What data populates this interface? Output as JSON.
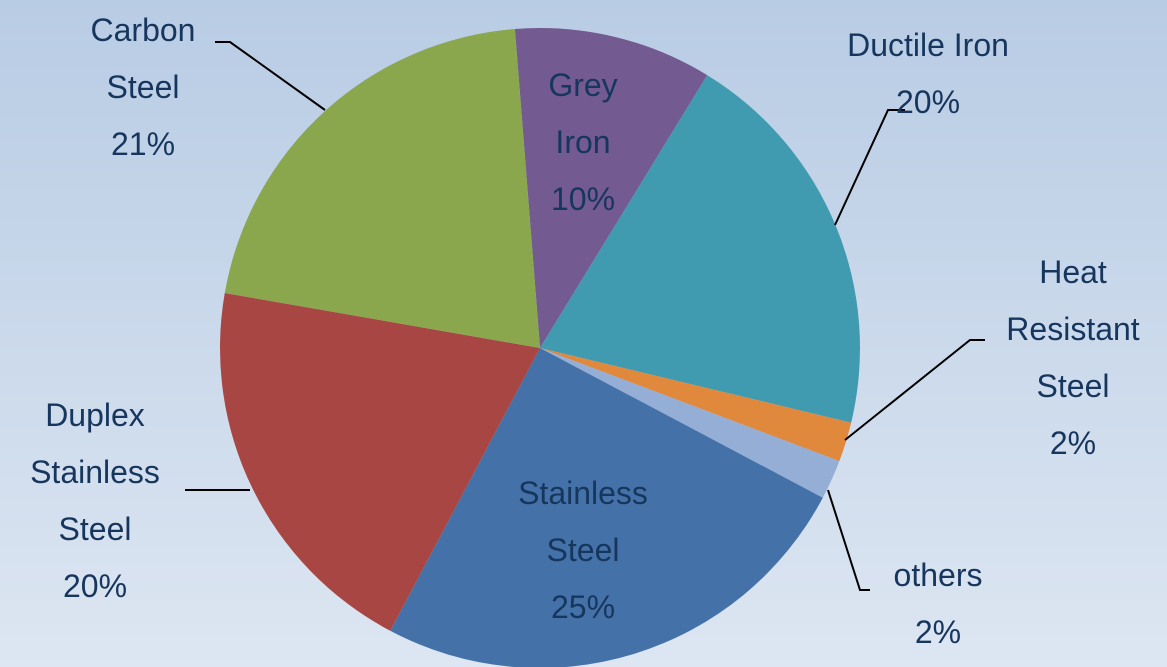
{
  "chart_data": {
    "type": "pie",
    "categories": [
      "Grey Iron",
      "Ductile Iron",
      "Heat Resistant Steel",
      "others",
      "Stainless Steel",
      "Duplex Stainless Steel",
      "Carbon Steel"
    ],
    "values": [
      10,
      20,
      2,
      2,
      25,
      20,
      21
    ],
    "value_labels": [
      "10%",
      "20%",
      "2%",
      "2%",
      "25%",
      "20%",
      "21%"
    ],
    "colors": [
      "#735a91",
      "#409bb0",
      "#e0883c",
      "#94aed6",
      "#4472a8",
      "#a84644",
      "#8aa74e"
    ]
  }
}
